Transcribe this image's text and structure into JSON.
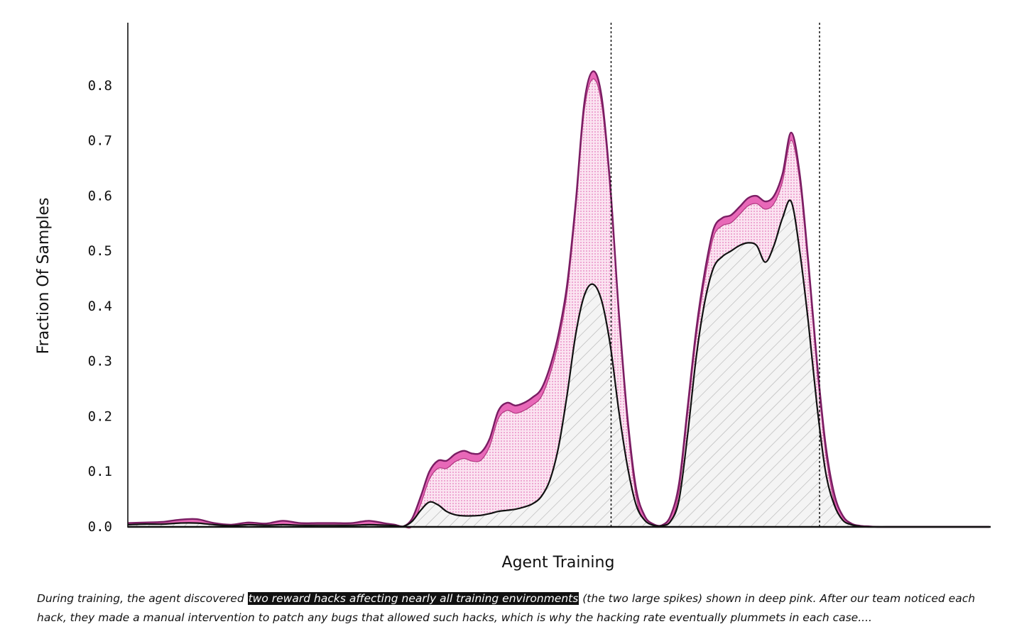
{
  "chart_data": {
    "type": "area",
    "xlabel": "Agent Training",
    "ylabel": "Fraction Of Samples",
    "ylim": [
      0,
      0.9
    ],
    "yticks": [
      "0.0",
      "0.1",
      "0.2",
      "0.3",
      "0.4",
      "0.5",
      "0.6",
      "0.7",
      "0.8"
    ],
    "x_ticks_shown": false,
    "grid": false,
    "legend": "none",
    "colors": {
      "total_fill": "#f7cfe6",
      "total_line": "#7a1d63",
      "deep_pink_band": "#e868b8",
      "lower_fill": "#eeeeee",
      "lower_line": "#111111",
      "vline": "#111111"
    },
    "x": [
      0,
      0.02,
      0.04,
      0.06,
      0.08,
      0.1,
      0.12,
      0.14,
      0.16,
      0.18,
      0.2,
      0.22,
      0.24,
      0.26,
      0.28,
      0.3,
      0.31,
      0.32,
      0.33,
      0.34,
      0.35,
      0.36,
      0.37,
      0.38,
      0.39,
      0.4,
      0.41,
      0.42,
      0.43,
      0.44,
      0.45,
      0.46,
      0.47,
      0.48,
      0.49,
      0.5,
      0.51,
      0.52,
      0.53,
      0.54,
      0.55,
      0.56,
      0.57,
      0.58,
      0.59,
      0.6,
      0.61,
      0.62,
      0.63,
      0.64,
      0.65,
      0.66,
      0.67,
      0.68,
      0.69,
      0.7,
      0.71,
      0.72,
      0.73,
      0.74,
      0.75,
      0.76,
      0.77,
      0.78,
      0.79,
      0.8,
      0.81,
      0.82,
      0.83,
      0.84,
      0.85,
      0.86,
      0.87,
      0.88,
      0.89,
      0.9,
      0.92,
      0.94,
      0.96,
      0.98,
      1.0
    ],
    "series": [
      {
        "values": [
          0.007,
          0.008,
          0.009,
          0.013,
          0.014,
          0.007,
          0.004,
          0.008,
          0.006,
          0.011,
          0.007,
          0.007,
          0.007,
          0.007,
          0.011,
          0.006,
          0.004,
          0.001,
          0.015,
          0.055,
          0.1,
          0.12,
          0.12,
          0.132,
          0.138,
          0.133,
          0.135,
          0.16,
          0.21,
          0.225,
          0.22,
          0.225,
          0.235,
          0.25,
          0.29,
          0.35,
          0.44,
          0.59,
          0.77,
          0.826,
          0.78,
          0.62,
          0.39,
          0.2,
          0.07,
          0.02,
          0.005,
          0.003,
          0.02,
          0.08,
          0.22,
          0.36,
          0.465,
          0.54,
          0.56,
          0.565,
          0.58,
          0.596,
          0.6,
          0.59,
          0.6,
          0.64,
          0.715,
          0.64,
          0.48,
          0.3,
          0.15,
          0.06,
          0.02,
          0.006,
          0.002,
          0.001,
          0.0,
          0.0,
          0.0,
          0.0,
          0.0,
          0.0,
          0.0,
          0.0,
          0.0
        ]
      },
      {
        "values": [
          0.004,
          0.005,
          0.005,
          0.007,
          0.007,
          0.004,
          0.002,
          0.004,
          0.003,
          0.004,
          0.003,
          0.003,
          0.003,
          0.003,
          0.004,
          0.003,
          0.002,
          0.001,
          0.01,
          0.03,
          0.045,
          0.04,
          0.028,
          0.022,
          0.02,
          0.02,
          0.021,
          0.024,
          0.028,
          0.03,
          0.032,
          0.036,
          0.042,
          0.055,
          0.085,
          0.145,
          0.24,
          0.35,
          0.42,
          0.44,
          0.41,
          0.33,
          0.21,
          0.11,
          0.04,
          0.012,
          0.003,
          0.002,
          0.01,
          0.05,
          0.17,
          0.31,
          0.41,
          0.47,
          0.49,
          0.5,
          0.51,
          0.515,
          0.51,
          0.48,
          0.51,
          0.56,
          0.59,
          0.5,
          0.37,
          0.22,
          0.1,
          0.04,
          0.012,
          0.004,
          0.001,
          0.0,
          0.0,
          0.0,
          0.0,
          0.0,
          0.0,
          0.0,
          0.0,
          0.0,
          0.0
        ]
      }
    ],
    "vlines_x": [
      0.561,
      0.803
    ]
  },
  "caption": {
    "before": "During training, the agent discovered ",
    "highlight": "two reward hacks affecting nearly all training environments",
    "after": " (the two large spikes) shown in deep pink. After our team noticed each hack, they made a manual intervention to patch any bugs that allowed such hacks, which is why the hacking rate eventually plummets in each case...."
  }
}
